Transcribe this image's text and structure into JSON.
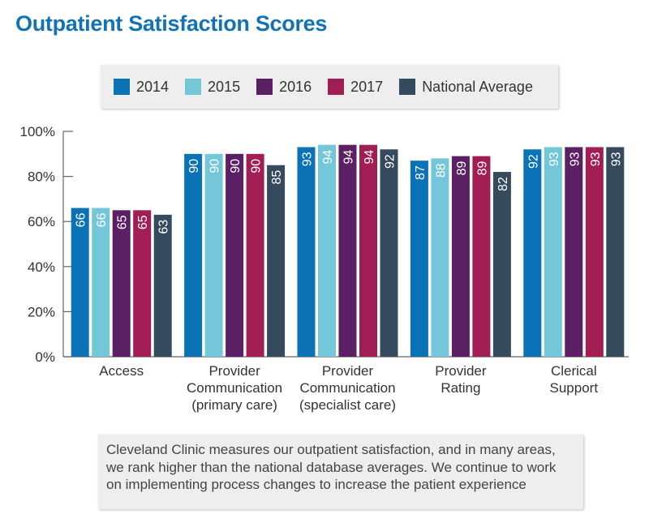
{
  "title": "Outpatient Satisfaction Scores",
  "colors": {
    "title": "#1173b5",
    "axis": "#666666",
    "label": "#333333",
    "bar_text": "#ffffff",
    "series": [
      "#0b72b5",
      "#74c6d9",
      "#5b1f63",
      "#a01e54",
      "#364a5e"
    ]
  },
  "legend": {
    "items": [
      "2014",
      "2015",
      "2016",
      "2017",
      "National Average"
    ]
  },
  "chart_data": {
    "type": "bar",
    "categories": [
      [
        "Access"
      ],
      [
        "Provider",
        "Communication",
        "(primary care)"
      ],
      [
        "Provider",
        "Communication",
        "(specialist care)"
      ],
      [
        "Provider",
        "Rating"
      ],
      [
        "Clerical",
        "Support"
      ]
    ],
    "series": [
      {
        "name": "2014",
        "values": [
          66,
          90,
          93,
          87,
          92
        ]
      },
      {
        "name": "2015",
        "values": [
          66,
          90,
          94,
          88,
          93
        ]
      },
      {
        "name": "2016",
        "values": [
          65,
          90,
          94,
          89,
          93
        ]
      },
      {
        "name": "2017",
        "values": [
          65,
          90,
          94,
          89,
          93
        ]
      },
      {
        "name": "National Average",
        "values": [
          63,
          85,
          92,
          82,
          93
        ]
      }
    ],
    "ylim": [
      0,
      100
    ],
    "yticks": [
      0,
      20,
      40,
      60,
      80,
      100
    ],
    "ytick_labels": [
      "0%",
      "20%",
      "40%",
      "60%",
      "80%",
      "100%"
    ],
    "grid": false,
    "legend_position": "top"
  },
  "note": "Cleveland Clinic measures our outpatient satisfaction, and in many areas, we rank higher than the national database averages. We continue to work on implementing process changes to increase the patient experience"
}
